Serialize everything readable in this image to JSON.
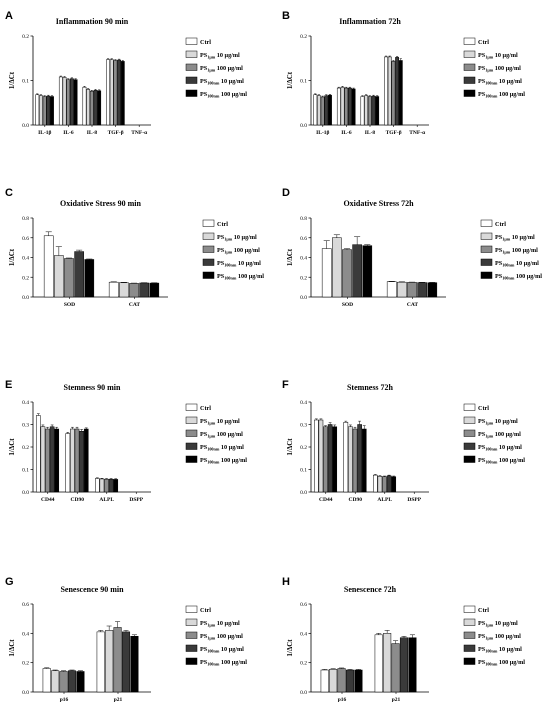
{
  "series_colors": [
    "#ffffff",
    "#d9d9d9",
    "#8c8c8c",
    "#3a3a3a",
    "#000000"
  ],
  "chart_data": [
    {
      "panel_label": "A",
      "type": "bar",
      "title": "Inflammation 90 min",
      "ylabel": "1/ΔCt",
      "ylim": [
        0,
        0.2
      ],
      "yticks": [
        "0.0",
        "0.1",
        "0.2"
      ],
      "ytick_values": [
        0,
        0.1,
        0.2
      ],
      "categories": [
        "IL-1β",
        "IL-6",
        "IL-8",
        "TGF-β",
        "TNF-α"
      ],
      "series": [
        {
          "legend": "Ctrl",
          "values": [
            0.068,
            0.108,
            0.085,
            0.147,
            0
          ],
          "errors": [
            0.002,
            0.002,
            0.002,
            0.002,
            0
          ]
        },
        {
          "legend": "PS1µm 10 µg/ml",
          "legend_main": "PS",
          "legend_sub": "1µm",
          "legend_rest": " 10 µg/ml",
          "values": [
            0.066,
            0.107,
            0.08,
            0.147,
            0
          ],
          "errors": [
            0.002,
            0.002,
            0.002,
            0.002,
            0
          ]
        },
        {
          "legend": "PS1µm 100 µg/ml",
          "legend_main": "PS",
          "legend_sub": "1µm",
          "legend_rest": " 100 µg/ml",
          "values": [
            0.064,
            0.102,
            0.076,
            0.145,
            0
          ],
          "errors": [
            0.002,
            0.002,
            0.002,
            0.002,
            0
          ]
        },
        {
          "legend": "PS100nm 10 µg/ml",
          "legend_main": "PS",
          "legend_sub": "100nm",
          "legend_rest": " 10 µg/ml",
          "values": [
            0.065,
            0.104,
            0.078,
            0.146,
            0
          ],
          "errors": [
            0.002,
            0.002,
            0.002,
            0.002,
            0
          ]
        },
        {
          "legend": "PS100nm 100 µg/ml",
          "legend_main": "PS",
          "legend_sub": "100nm",
          "legend_rest": " 100 µg/ml",
          "values": [
            0.064,
            0.102,
            0.077,
            0.143,
            0
          ],
          "errors": [
            0.002,
            0.002,
            0.002,
            0.002,
            0
          ]
        }
      ]
    },
    {
      "panel_label": "B",
      "type": "bar",
      "title": "Inflammation 72h",
      "ylabel": "1/ΔCt",
      "ylim": [
        0,
        0.2
      ],
      "yticks": [
        "0.0",
        "0.1",
        "0.2"
      ],
      "ytick_values": [
        0,
        0.1,
        0.2
      ],
      "categories": [
        "IL-1β",
        "IL-6",
        "IL-8",
        "TGF-β",
        "TNF-α"
      ],
      "series": [
        {
          "legend": "Ctrl",
          "values": [
            0.068,
            0.083,
            0.064,
            0.153,
            0
          ],
          "errors": [
            0.002,
            0.002,
            0.002,
            0.002,
            0
          ]
        },
        {
          "legend": "PS1µm 10 µg/ml",
          "legend_main": "PS",
          "legend_sub": "1µm",
          "legend_rest": " 10 µg/ml",
          "values": [
            0.066,
            0.085,
            0.066,
            0.153,
            0
          ],
          "errors": [
            0.002,
            0.002,
            0.002,
            0.002,
            0
          ]
        },
        {
          "legend": "PS1µm 100 µg/ml",
          "legend_main": "PS",
          "legend_sub": "1µm",
          "legend_rest": " 100 µg/ml",
          "values": [
            0.063,
            0.083,
            0.064,
            0.143,
            0
          ],
          "errors": [
            0.002,
            0.002,
            0.002,
            0.002,
            0
          ]
        },
        {
          "legend": "PS100nm 10 µg/ml",
          "legend_main": "PS",
          "legend_sub": "100nm",
          "legend_rest": " 10 µg/ml",
          "values": [
            0.066,
            0.083,
            0.065,
            0.152,
            0
          ],
          "errors": [
            0.002,
            0.002,
            0.002,
            0.002,
            0
          ]
        },
        {
          "legend": "PS100nm 100 µg/ml",
          "legend_main": "PS",
          "legend_sub": "100nm",
          "legend_rest": " 100 µg/ml",
          "values": [
            0.067,
            0.081,
            0.064,
            0.145,
            0
          ],
          "errors": [
            0.002,
            0.002,
            0.002,
            0.004,
            0
          ]
        }
      ]
    },
    {
      "panel_label": "C",
      "type": "bar",
      "title": "Oxidative Stress 90 min",
      "ylabel": "1/ΔCt",
      "ylim": [
        0,
        0.8
      ],
      "yticks": [
        "0.0",
        "0.2",
        "0.4",
        "0.6",
        "0.8"
      ],
      "ytick_values": [
        0,
        0.2,
        0.4,
        0.6,
        0.8
      ],
      "categories": [
        "SOD",
        "CAT"
      ],
      "series": [
        {
          "legend": "Ctrl",
          "values": [
            0.62,
            0.15
          ],
          "errors": [
            0.04,
            0.004
          ]
        },
        {
          "legend": "PS1µm 10 µg/ml",
          "legend_main": "PS",
          "legend_sub": "1µm",
          "legend_rest": " 10 µg/ml",
          "values": [
            0.42,
            0.145
          ],
          "errors": [
            0.09,
            0.004
          ]
        },
        {
          "legend": "PS1µm 100 µg/ml",
          "legend_main": "PS",
          "legend_sub": "1µm",
          "legend_rest": " 100 µg/ml",
          "values": [
            0.39,
            0.138
          ],
          "errors": [
            0.005,
            0.003
          ]
        },
        {
          "legend": "PS100nm 10 µg/ml",
          "legend_main": "PS",
          "legend_sub": "100nm",
          "legend_rest": " 10 µg/ml",
          "values": [
            0.46,
            0.142
          ],
          "errors": [
            0.015,
            0.003
          ]
        },
        {
          "legend": "PS100nm 100 µg/ml",
          "legend_main": "PS",
          "legend_sub": "100nm",
          "legend_rest": " 100 µg/ml",
          "values": [
            0.38,
            0.141
          ],
          "errors": [
            0.005,
            0.003
          ]
        }
      ]
    },
    {
      "panel_label": "D",
      "type": "bar",
      "title": "Oxidative Stress 72h",
      "ylabel": "1/ΔCt",
      "ylim": [
        0,
        0.8
      ],
      "yticks": [
        "0.0",
        "0.2",
        "0.4",
        "0.6",
        "0.8"
      ],
      "ytick_values": [
        0,
        0.2,
        0.4,
        0.6,
        0.8
      ],
      "categories": [
        "SOD",
        "CAT"
      ],
      "series": [
        {
          "legend": "Ctrl",
          "values": [
            0.49,
            0.155
          ],
          "errors": [
            0.08,
            0.004
          ]
        },
        {
          "legend": "PS1µm 10 µg/ml",
          "legend_main": "PS",
          "legend_sub": "1µm",
          "legend_rest": " 10 µg/ml",
          "values": [
            0.6,
            0.15
          ],
          "errors": [
            0.03,
            0.004
          ]
        },
        {
          "legend": "PS1µm 100 µg/ml",
          "legend_main": "PS",
          "legend_sub": "1µm",
          "legend_rest": " 100 µg/ml",
          "values": [
            0.48,
            0.148
          ],
          "errors": [
            0.01,
            0.003
          ]
        },
        {
          "legend": "PS100nm 10 µg/ml",
          "legend_main": "PS",
          "legend_sub": "100nm",
          "legend_rest": " 10 µg/ml",
          "values": [
            0.53,
            0.146
          ],
          "errors": [
            0.08,
            0.003
          ]
        },
        {
          "legend": "PS100nm 100 µg/ml",
          "legend_main": "PS",
          "legend_sub": "100nm",
          "legend_rest": " 100 µg/ml",
          "values": [
            0.52,
            0.145
          ],
          "errors": [
            0.01,
            0.003
          ]
        }
      ]
    },
    {
      "panel_label": "E",
      "type": "bar",
      "title": "Stemness 90 min",
      "ylabel": "1/ΔCt",
      "ylim": [
        0,
        0.4
      ],
      "yticks": [
        "0.0",
        "0.1",
        "0.2",
        "0.3",
        "0.4"
      ],
      "ytick_values": [
        0,
        0.1,
        0.2,
        0.3,
        0.4
      ],
      "categories": [
        "CD44",
        "CD90",
        "ALPL",
        "DSPP"
      ],
      "series": [
        {
          "legend": "Ctrl",
          "values": [
            0.34,
            0.26,
            0.06,
            0
          ],
          "errors": [
            0.008,
            0.005,
            0.003,
            0
          ]
        },
        {
          "legend": "PS1µm 10 µg/ml",
          "legend_main": "PS",
          "legend_sub": "1µm",
          "legend_rest": " 10 µg/ml",
          "values": [
            0.29,
            0.28,
            0.058,
            0
          ],
          "errors": [
            0.008,
            0.008,
            0.003,
            0
          ]
        },
        {
          "legend": "PS1µm 100 µg/ml",
          "legend_main": "PS",
          "legend_sub": "1µm",
          "legend_rest": " 100 µg/ml",
          "values": [
            0.28,
            0.28,
            0.057,
            0
          ],
          "errors": [
            0.008,
            0.008,
            0.003,
            0
          ]
        },
        {
          "legend": "PS100nm 10 µg/ml",
          "legend_main": "PS",
          "legend_sub": "100nm",
          "legend_rest": " 10 µg/ml",
          "values": [
            0.29,
            0.27,
            0.057,
            0
          ],
          "errors": [
            0.008,
            0.008,
            0.003,
            0
          ]
        },
        {
          "legend": "PS100nm 100 µg/ml",
          "legend_main": "PS",
          "legend_sub": "100nm",
          "legend_rest": " 100 µg/ml",
          "values": [
            0.28,
            0.28,
            0.056,
            0
          ],
          "errors": [
            0.008,
            0.005,
            0.003,
            0
          ]
        }
      ]
    },
    {
      "panel_label": "F",
      "type": "bar",
      "title": "Stemness 72h",
      "ylabel": "1/ΔCt",
      "ylim": [
        0,
        0.4
      ],
      "yticks": [
        "0.0",
        "0.1",
        "0.2",
        "0.3",
        "0.4"
      ],
      "ytick_values": [
        0,
        0.1,
        0.2,
        0.3,
        0.4
      ],
      "categories": [
        "CD44",
        "CD90",
        "ALPL",
        "DSPP"
      ],
      "series": [
        {
          "legend": "Ctrl",
          "values": [
            0.32,
            0.31,
            0.075,
            0
          ],
          "errors": [
            0.005,
            0.005,
            0.003,
            0
          ]
        },
        {
          "legend": "PS1µm 10 µg/ml",
          "legend_main": "PS",
          "legend_sub": "1µm",
          "legend_rest": " 10 µg/ml",
          "values": [
            0.32,
            0.29,
            0.07,
            0
          ],
          "errors": [
            0.005,
            0.008,
            0.003,
            0
          ]
        },
        {
          "legend": "PS1µm 100 µg/ml",
          "legend_main": "PS",
          "legend_sub": "1µm",
          "legend_rest": " 100 µg/ml",
          "values": [
            0.29,
            0.28,
            0.068,
            0
          ],
          "errors": [
            0.005,
            0.008,
            0.003,
            0
          ]
        },
        {
          "legend": "PS100nm 10 µg/ml",
          "legend_main": "PS",
          "legend_sub": "100nm",
          "legend_rest": " 10 µg/ml",
          "values": [
            0.3,
            0.3,
            0.072,
            0
          ],
          "errors": [
            0.008,
            0.015,
            0.003,
            0
          ]
        },
        {
          "legend": "PS100nm 100 µg/ml",
          "legend_main": "PS",
          "legend_sub": "100nm",
          "legend_rest": " 100 µg/ml",
          "values": [
            0.29,
            0.28,
            0.068,
            0
          ],
          "errors": [
            0.008,
            0.015,
            0.003,
            0
          ]
        }
      ]
    },
    {
      "panel_label": "G",
      "type": "bar",
      "title": "Senescence 90 min",
      "ylabel": "1/ΔCt",
      "ylim": [
        0,
        0.6
      ],
      "yticks": [
        "0.0",
        "0.2",
        "0.4",
        "0.6"
      ],
      "ytick_values": [
        0,
        0.2,
        0.4,
        0.6
      ],
      "categories": [
        "p16",
        "p21"
      ],
      "series": [
        {
          "legend": "Ctrl",
          "values": [
            0.16,
            0.41
          ],
          "errors": [
            0.005,
            0.01
          ]
        },
        {
          "legend": "PS1µm 10 µg/ml",
          "legend_main": "PS",
          "legend_sub": "1µm",
          "legend_rest": " 10 µg/ml",
          "values": [
            0.145,
            0.42
          ],
          "errors": [
            0.005,
            0.03
          ]
        },
        {
          "legend": "PS1µm 100 µg/ml",
          "legend_main": "PS",
          "legend_sub": "1µm",
          "legend_rest": " 100 µg/ml",
          "values": [
            0.14,
            0.44
          ],
          "errors": [
            0.005,
            0.04
          ]
        },
        {
          "legend": "PS100nm 10 µg/ml",
          "legend_main": "PS",
          "legend_sub": "100nm",
          "legend_rest": " 10 µg/ml",
          "values": [
            0.145,
            0.41
          ],
          "errors": [
            0.005,
            0.01
          ]
        },
        {
          "legend": "PS100nm 100 µg/ml",
          "legend_main": "PS",
          "legend_sub": "100nm",
          "legend_rest": " 100 µg/ml",
          "values": [
            0.14,
            0.38
          ],
          "errors": [
            0.005,
            0.01
          ]
        }
      ]
    },
    {
      "panel_label": "H",
      "type": "bar",
      "title": "Senescence 72h",
      "ylabel": "1/ΔCt",
      "ylim": [
        0,
        0.6
      ],
      "yticks": [
        "0.0",
        "0.2",
        "0.4",
        "0.6"
      ],
      "ytick_values": [
        0,
        0.2,
        0.4,
        0.6
      ],
      "categories": [
        "p16",
        "p21"
      ],
      "series": [
        {
          "legend": "Ctrl",
          "values": [
            0.15,
            0.39
          ],
          "errors": [
            0.004,
            0.01
          ]
        },
        {
          "legend": "PS1µm 10 µg/ml",
          "legend_main": "PS",
          "legend_sub": "1µm",
          "legend_rest": " 10 µg/ml",
          "values": [
            0.155,
            0.4
          ],
          "errors": [
            0.004,
            0.02
          ]
        },
        {
          "legend": "PS1µm 100 µg/ml",
          "legend_main": "PS",
          "legend_sub": "1µm",
          "legend_rest": " 100 µg/ml",
          "values": [
            0.16,
            0.33
          ],
          "errors": [
            0.004,
            0.02
          ]
        },
        {
          "legend": "PS100nm 10 µg/ml",
          "legend_main": "PS",
          "legend_sub": "100nm",
          "legend_rest": " 10 µg/ml",
          "values": [
            0.15,
            0.37
          ],
          "errors": [
            0.004,
            0.01
          ]
        },
        {
          "legend": "PS100nm 100 µg/ml",
          "legend_main": "PS",
          "legend_sub": "100nm",
          "legend_rest": " 100 µg/ml",
          "values": [
            0.15,
            0.37
          ],
          "errors": [
            0.004,
            0.02
          ]
        }
      ]
    }
  ]
}
